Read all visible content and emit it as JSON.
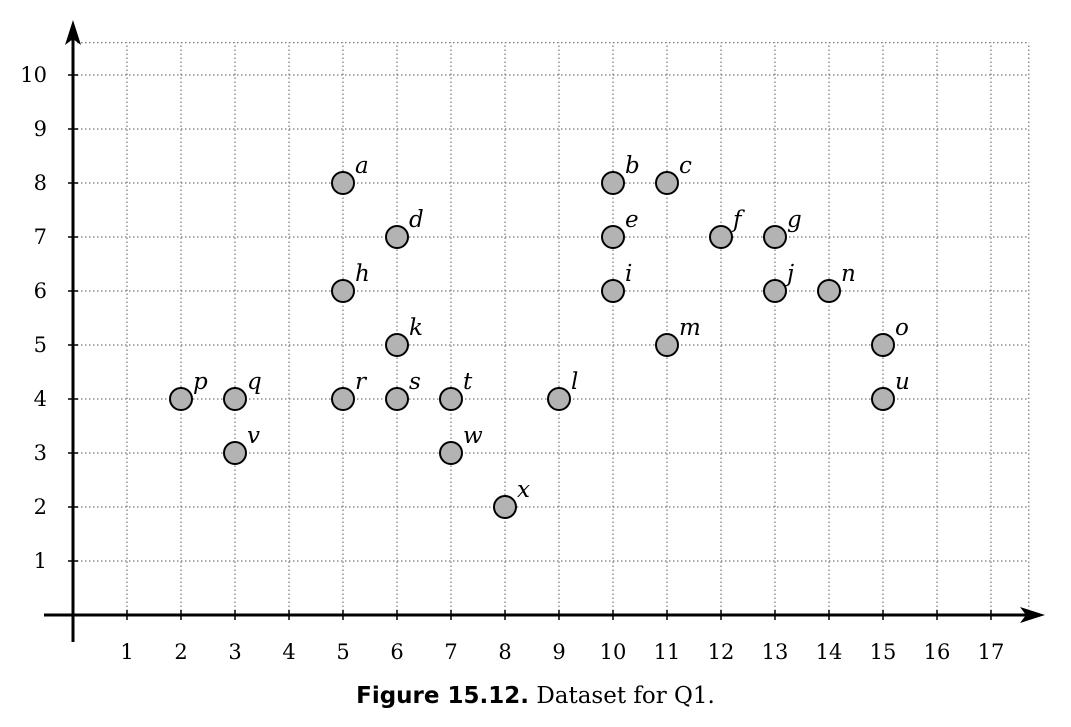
{
  "chart_data": {
    "type": "scatter",
    "title": "",
    "xlabel": "",
    "ylabel": "",
    "xlim": [
      0,
      17.7
    ],
    "ylim": [
      0,
      10.8
    ],
    "grid": true,
    "x_ticks": [
      "1",
      "2",
      "3",
      "4",
      "5",
      "6",
      "7",
      "8",
      "9",
      "10",
      "11",
      "12",
      "13",
      "14",
      "15",
      "16",
      "17"
    ],
    "y_ticks": [
      "1",
      "2",
      "3",
      "4",
      "5",
      "6",
      "7",
      "8",
      "9",
      "10"
    ],
    "points": [
      {
        "label": "a",
        "x": 5,
        "y": 8
      },
      {
        "label": "b",
        "x": 10,
        "y": 8
      },
      {
        "label": "c",
        "x": 11,
        "y": 8
      },
      {
        "label": "d",
        "x": 6,
        "y": 7
      },
      {
        "label": "e",
        "x": 10,
        "y": 7
      },
      {
        "label": "f",
        "x": 12,
        "y": 7
      },
      {
        "label": "g",
        "x": 13,
        "y": 7
      },
      {
        "label": "h",
        "x": 5,
        "y": 6
      },
      {
        "label": "i",
        "x": 10,
        "y": 6
      },
      {
        "label": "j",
        "x": 13,
        "y": 6
      },
      {
        "label": "k",
        "x": 6,
        "y": 5
      },
      {
        "label": "l",
        "x": 9,
        "y": 4
      },
      {
        "label": "m",
        "x": 11,
        "y": 5
      },
      {
        "label": "n",
        "x": 14,
        "y": 6
      },
      {
        "label": "o",
        "x": 15,
        "y": 5
      },
      {
        "label": "p",
        "x": 2,
        "y": 4
      },
      {
        "label": "q",
        "x": 3,
        "y": 4
      },
      {
        "label": "r",
        "x": 5,
        "y": 4
      },
      {
        "label": "s",
        "x": 6,
        "y": 4
      },
      {
        "label": "t",
        "x": 7,
        "y": 4
      },
      {
        "label": "u",
        "x": 15,
        "y": 4
      },
      {
        "label": "v",
        "x": 3,
        "y": 3
      },
      {
        "label": "w",
        "x": 7,
        "y": 3
      },
      {
        "label": "x",
        "x": 8,
        "y": 2
      }
    ],
    "marker_fill": "#b3b3b3",
    "marker_stroke": "#000000"
  },
  "caption": {
    "number": "Figure 15.12.",
    "text": "Dataset for Q1."
  }
}
